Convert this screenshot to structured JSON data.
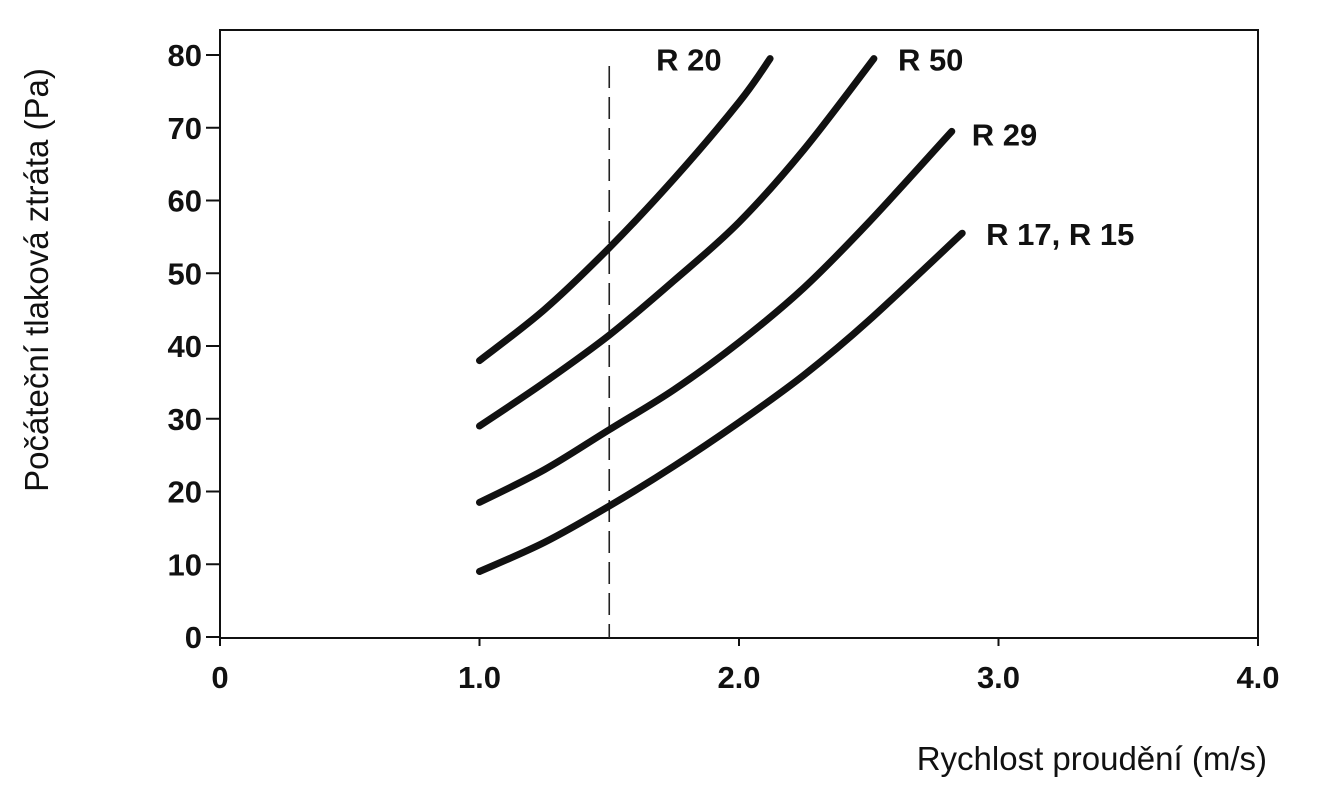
{
  "chart_data": {
    "type": "line",
    "title": "",
    "xlabel": "Rychlost proudění (m/s)",
    "ylabel": "Počáteční tlaková ztráta (Pa)",
    "xlim": [
      0,
      4
    ],
    "ylim": [
      0,
      80
    ],
    "x_ticks": [
      0,
      1.0,
      2.0,
      3.0,
      4.0
    ],
    "x_tick_labels": [
      "0",
      "1.0",
      "2.0",
      "3.0",
      "4.0"
    ],
    "y_ticks": [
      0,
      10,
      20,
      30,
      40,
      50,
      60,
      70,
      80
    ],
    "y_tick_labels": [
      "0",
      "10",
      "20",
      "30",
      "40",
      "50",
      "60",
      "70",
      "80"
    ],
    "grid": false,
    "legend": "none",
    "reference_line": {
      "x": 1.5,
      "style": "dashed"
    },
    "series": [
      {
        "name": "R 20",
        "x": [
          1.0,
          1.25,
          1.5,
          1.75,
          2.0,
          2.12
        ],
        "y": [
          38,
          45,
          53.5,
          63,
          73.5,
          79.5
        ]
      },
      {
        "name": "R 50",
        "x": [
          1.0,
          1.25,
          1.5,
          1.75,
          2.0,
          2.25,
          2.52
        ],
        "y": [
          29,
          35,
          41.5,
          49,
          57,
          67,
          79.5
        ]
      },
      {
        "name": "R 29",
        "x": [
          1.0,
          1.25,
          1.5,
          1.75,
          2.0,
          2.25,
          2.5,
          2.82
        ],
        "y": [
          18.5,
          23,
          28.5,
          34,
          40.5,
          48,
          57,
          69.5
        ]
      },
      {
        "name": "R 17, R 15",
        "x": [
          1.0,
          1.25,
          1.5,
          1.75,
          2.0,
          2.25,
          2.5,
          2.86
        ],
        "y": [
          9,
          13,
          18,
          23.5,
          29.5,
          36,
          43.5,
          55.5
        ]
      }
    ]
  }
}
